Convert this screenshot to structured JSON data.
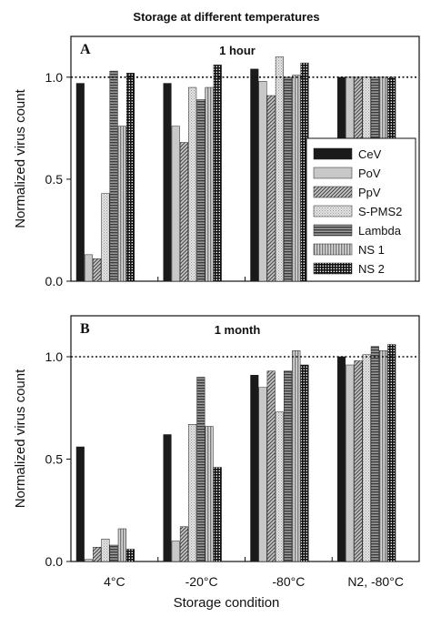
{
  "figure_title": "Storage at different temperatures",
  "xlabel": "Storage condition",
  "legend": [
    "CeV",
    "PoV",
    "PpV",
    "S-PMS2",
    "Lambda",
    "NS 1",
    "NS 2"
  ],
  "chart_data": [
    {
      "type": "bar",
      "panel_label": "A",
      "title": "1 hour",
      "xlabel": "Storage condition",
      "ylabel": "Normalized virus count",
      "ylim": [
        0,
        1.2
      ],
      "yticks": [
        "0.0",
        "0.5",
        "1.0"
      ],
      "reference_line": 1.0,
      "legend_placement": "bottom-right",
      "categories": [
        "4°C",
        "-20°C",
        "-80°C",
        "N2, -80°C"
      ],
      "series": [
        {
          "name": "CeV",
          "values": [
            0.97,
            0.97,
            1.04,
            1.0
          ]
        },
        {
          "name": "PoV",
          "values": [
            0.13,
            0.76,
            0.98,
            1.0
          ]
        },
        {
          "name": "PpV",
          "values": [
            0.11,
            0.68,
            0.91,
            1.0
          ]
        },
        {
          "name": "S-PMS2",
          "values": [
            0.43,
            0.95,
            1.1,
            1.0
          ]
        },
        {
          "name": "Lambda",
          "values": [
            1.03,
            0.89,
            1.0,
            1.0
          ]
        },
        {
          "name": "NS 1",
          "values": [
            0.76,
            0.95,
            1.01,
            1.0
          ]
        },
        {
          "name": "NS 2",
          "values": [
            1.02,
            1.06,
            1.07,
            1.0
          ]
        }
      ]
    },
    {
      "type": "bar",
      "panel_label": "B",
      "title": "1 month",
      "xlabel": "Storage condition",
      "ylabel": "Normalized virus count",
      "ylim": [
        0,
        1.2
      ],
      "yticks": [
        "0.0",
        "0.5",
        "1.0"
      ],
      "reference_line": 1.0,
      "categories": [
        "4°C",
        "-20°C",
        "-80°C",
        "N2, -80°C"
      ],
      "series": [
        {
          "name": "CeV",
          "values": [
            0.56,
            0.62,
            0.91,
            1.0
          ]
        },
        {
          "name": "PoV",
          "values": [
            0.01,
            0.1,
            0.85,
            0.96
          ]
        },
        {
          "name": "PpV",
          "values": [
            0.07,
            0.17,
            0.93,
            0.98
          ]
        },
        {
          "name": "S-PMS2",
          "values": [
            0.11,
            0.67,
            0.73,
            1.01
          ]
        },
        {
          "name": "Lambda",
          "values": [
            0.08,
            0.9,
            0.93,
            1.05
          ]
        },
        {
          "name": "NS 1",
          "values": [
            0.16,
            0.66,
            1.03,
            1.03
          ]
        },
        {
          "name": "NS 2",
          "values": [
            0.06,
            0.46,
            0.96,
            1.06
          ]
        }
      ]
    }
  ]
}
